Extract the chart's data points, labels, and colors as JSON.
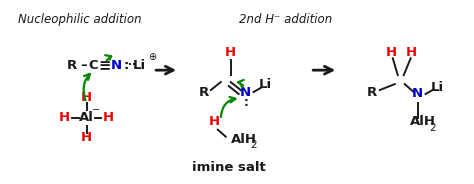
{
  "bg_color": "#ffffff",
  "black": "#1a1a1a",
  "red": "#ee0000",
  "blue": "#0000cc",
  "green": "#008800",
  "title_left": "Nucleophilic addition",
  "title_right": "2nd H⁻ addition",
  "label_imine": "imine salt",
  "fig_width": 4.74,
  "fig_height": 1.84,
  "dpi": 100
}
